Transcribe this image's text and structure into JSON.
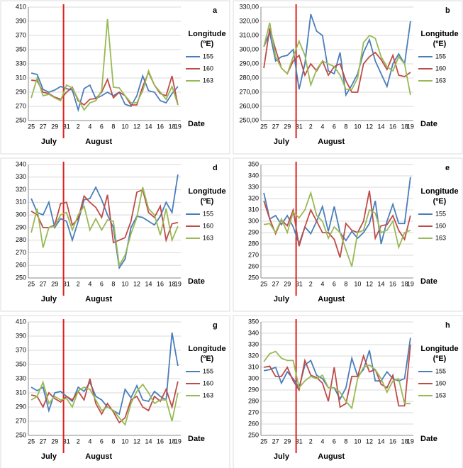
{
  "chart_data": [
    {
      "type": "line",
      "panel": "a",
      "categories": [
        "25",
        null,
        "27",
        null,
        "29",
        null,
        "31",
        null,
        "2",
        null,
        "4",
        null,
        "6",
        null,
        "8",
        null,
        "10",
        null,
        "12",
        null,
        "14",
        null,
        "16",
        null,
        "18",
        "19"
      ],
      "ylim": [
        250,
        410
      ],
      "yticks": [
        250,
        270,
        290,
        310,
        330,
        350,
        370,
        390,
        410
      ],
      "x_label": "Date",
      "month_labels": [
        "July",
        "August"
      ],
      "legend_title": [
        "Longitude",
        "(ºE)"
      ],
      "series": [
        {
          "name": "155",
          "color": "#4a7ebb",
          "values": [
            317,
            315,
            294,
            290,
            293,
            298,
            295,
            293,
            265,
            295,
            300,
            281,
            285,
            290,
            285,
            290,
            273,
            270,
            285,
            313,
            292,
            290,
            278,
            275,
            288,
            298
          ]
        },
        {
          "name": "160",
          "color": "#be4b48",
          "values": [
            307,
            306,
            290,
            288,
            283,
            280,
            290,
            297,
            278,
            272,
            280,
            281,
            290,
            308,
            282,
            290,
            285,
            272,
            272,
            298,
            318,
            300,
            288,
            285,
            313,
            272
          ]
        },
        {
          "name": "163",
          "color": "#98b954",
          "values": [
            282,
            310,
            285,
            287,
            282,
            278,
            300,
            296,
            280,
            265,
            275,
            278,
            292,
            393,
            297,
            296,
            285,
            275,
            275,
            292,
            320,
            300,
            290,
            280,
            298,
            272
          ]
        }
      ]
    },
    {
      "type": "line",
      "panel": "b",
      "categories": [
        "25",
        null,
        "27",
        null,
        "29",
        null,
        "31",
        null,
        "2",
        null,
        "4",
        null,
        "6",
        null,
        "8",
        null,
        "10",
        null,
        "12",
        null,
        "14",
        null,
        "16",
        null,
        "18",
        "19"
      ],
      "ylim": [
        250,
        330
      ],
      "yticks": [
        {
          "value": 250,
          "label": "250,00"
        },
        {
          "value": 260,
          "label": "260,00"
        },
        {
          "value": 270,
          "label": "270,00"
        },
        {
          "value": 280,
          "label": "280,00"
        },
        {
          "value": 290,
          "label": "290,00"
        },
        {
          "value": 300,
          "label": "300,00"
        },
        {
          "value": 310,
          "label": "310,00"
        },
        {
          "value": 320,
          "label": "320,00"
        },
        {
          "value": 330,
          "label": "330,00"
        }
      ],
      "x_label": "Date",
      "month_labels": [
        "July",
        "August"
      ],
      "legend_title": [
        "Longitude",
        "(ºE)"
      ],
      "series": [
        {
          "name": "155",
          "color": "#4a7ebb",
          "values": [
            302,
            312,
            292,
            295,
            296,
            300,
            272,
            290,
            325,
            313,
            310,
            285,
            283,
            298,
            268,
            275,
            283,
            298,
            307,
            292,
            283,
            274,
            290,
            297,
            290,
            320
          ]
        },
        {
          "name": "160",
          "color": "#be4b48",
          "values": [
            287,
            315,
            300,
            287,
            283,
            292,
            296,
            282,
            290,
            285,
            292,
            282,
            288,
            290,
            278,
            270,
            270,
            290,
            295,
            298,
            293,
            286,
            296,
            282,
            281,
            284
          ]
        },
        {
          "name": "163",
          "color": "#98b954",
          "values": [
            302,
            319,
            295,
            287,
            283,
            295,
            306,
            296,
            275,
            286,
            292,
            290,
            288,
            282,
            272,
            272,
            280,
            305,
            310,
            308,
            295,
            288,
            285,
            295,
            290,
            268
          ]
        }
      ]
    },
    {
      "type": "line",
      "panel": "d",
      "categories": [
        "25",
        null,
        "27",
        null,
        "29",
        null,
        "31",
        null,
        "2",
        null,
        "4",
        null,
        "6",
        null,
        "8",
        null,
        "10",
        null,
        "12",
        null,
        "14",
        null,
        "16",
        null,
        "18",
        "19"
      ],
      "ylim": [
        250,
        340
      ],
      "yticks": [
        250,
        260,
        270,
        280,
        290,
        300,
        310,
        320,
        330,
        340
      ],
      "x_label": "Date",
      "month_labels": [
        "July",
        "August"
      ],
      "legend_title": [
        "Longitude",
        "(ºE)"
      ],
      "series": [
        {
          "name": "155",
          "color": "#4a7ebb",
          "values": [
            313,
            302,
            300,
            310,
            290,
            297,
            295,
            280,
            295,
            312,
            313,
            322,
            312,
            300,
            290,
            258,
            265,
            290,
            299,
            298,
            295,
            292,
            299,
            310,
            302,
            332
          ]
        },
        {
          "name": "160",
          "color": "#be4b48",
          "values": [
            303,
            300,
            290,
            290,
            292,
            309,
            310,
            292,
            297,
            315,
            310,
            306,
            298,
            316,
            278,
            280,
            282,
            295,
            318,
            320,
            302,
            298,
            307,
            280,
            293,
            294
          ]
        },
        {
          "name": "163",
          "color": "#98b954",
          "values": [
            286,
            305,
            274,
            290,
            291,
            300,
            302,
            288,
            300,
            307,
            288,
            297,
            288,
            296,
            295,
            260,
            268,
            285,
            298,
            322,
            305,
            300,
            284,
            305,
            280,
            291
          ]
        }
      ]
    },
    {
      "type": "line",
      "panel": "e",
      "categories": [
        "25",
        null,
        "27",
        null,
        "29",
        null,
        "31",
        null,
        "2",
        null,
        "4",
        null,
        "6",
        null,
        "8",
        null,
        "10",
        null,
        "12",
        null,
        "14",
        null,
        "16",
        null,
        "18",
        "19"
      ],
      "ylim": [
        250,
        350
      ],
      "yticks": [
        250,
        260,
        270,
        280,
        290,
        300,
        310,
        320,
        330,
        340,
        350
      ],
      "x_label": "Date",
      "month_labels": [
        "July",
        "August"
      ],
      "legend_title": [
        "Longitude",
        "(ºE)"
      ],
      "series": [
        {
          "name": "155",
          "color": "#4a7ebb",
          "values": [
            325,
            302,
            305,
            297,
            305,
            295,
            280,
            295,
            289,
            300,
            313,
            291,
            313,
            290,
            283,
            291,
            285,
            290,
            298,
            318,
            280,
            300,
            315,
            298,
            298,
            339
          ]
        },
        {
          "name": "160",
          "color": "#be4b48",
          "values": [
            318,
            302,
            289,
            301,
            296,
            310,
            278,
            295,
            310,
            300,
            290,
            290,
            284,
            268,
            298,
            292,
            290,
            300,
            327,
            285,
            296,
            297,
            305,
            292,
            284,
            305
          ]
        },
        {
          "name": "163",
          "color": "#98b954",
          "values": [
            297,
            298,
            290,
            302,
            290,
            308,
            303,
            310,
            325,
            305,
            300,
            285,
            295,
            290,
            275,
            260,
            290,
            292,
            310,
            307,
            290,
            292,
            300,
            277,
            290,
            292
          ]
        }
      ]
    },
    {
      "type": "line",
      "panel": "g",
      "categories": [
        "25",
        null,
        "27",
        null,
        "29",
        null,
        "31",
        null,
        "2",
        null,
        "4",
        null,
        "6",
        null,
        "8",
        null,
        "10",
        null,
        "12",
        null,
        "14",
        null,
        "16",
        null,
        "18",
        "19"
      ],
      "ylim": [
        250,
        410
      ],
      "yticks": [
        250,
        270,
        290,
        310,
        330,
        350,
        370,
        390,
        410
      ],
      "x_label": "Date",
      "month_labels": [
        "July",
        "August"
      ],
      "legend_title": [
        "Longitude",
        "(ºE)"
      ],
      "series": [
        {
          "name": "155",
          "color": "#4a7ebb",
          "values": [
            318,
            313,
            318,
            285,
            310,
            312,
            305,
            298,
            318,
            312,
            325,
            305,
            300,
            290,
            285,
            280,
            315,
            303,
            320,
            300,
            298,
            312,
            305,
            300,
            395,
            348
          ]
        },
        {
          "name": "160",
          "color": "#be4b48",
          "values": [
            307,
            305,
            290,
            310,
            302,
            297,
            305,
            300,
            312,
            300,
            330,
            295,
            280,
            295,
            283,
            268,
            275,
            300,
            305,
            290,
            285,
            305,
            298,
            315,
            290,
            326
          ]
        },
        {
          "name": "163",
          "color": "#98b954",
          "values": [
            300,
            305,
            325,
            295,
            305,
            300,
            302,
            290,
            313,
            318,
            315,
            300,
            285,
            290,
            285,
            275,
            265,
            295,
            312,
            322,
            310,
            295,
            300,
            300,
            270,
            310
          ]
        }
      ]
    },
    {
      "type": "line",
      "panel": "h",
      "categories": [
        "25",
        null,
        "27",
        null,
        "29",
        null,
        "31",
        null,
        "2",
        null,
        "4",
        null,
        "6",
        null,
        "8",
        null,
        "10",
        null,
        "12",
        null,
        "14",
        null,
        "16",
        null,
        "18",
        "19"
      ],
      "ylim": [
        250,
        350
      ],
      "yticks": [
        250,
        260,
        270,
        280,
        290,
        300,
        310,
        320,
        330,
        340,
        350
      ],
      "x_label": "Date",
      "month_labels": [
        "July",
        "August"
      ],
      "legend_title": [
        "Longitude",
        "(ºE)"
      ],
      "series": [
        {
          "name": "155",
          "color": "#4a7ebb",
          "values": [
            307,
            308,
            310,
            296,
            306,
            300,
            292,
            312,
            316,
            303,
            300,
            292,
            292,
            282,
            292,
            318,
            302,
            308,
            325,
            298,
            298,
            306,
            300,
            298,
            300,
            336
          ]
        },
        {
          "name": "160",
          "color": "#be4b48",
          "values": [
            310,
            311,
            302,
            302,
            310,
            298,
            290,
            316,
            303,
            301,
            296,
            280,
            310,
            275,
            278,
            302,
            302,
            320,
            306,
            308,
            295,
            292,
            303,
            276,
            276,
            330
          ]
        },
        {
          "name": "163",
          "color": "#98b954",
          "values": [
            315,
            322,
            324,
            318,
            316,
            316,
            292,
            298,
            302,
            300,
            303,
            292,
            292,
            288,
            280,
            274,
            300,
            310,
            312,
            308,
            300,
            288,
            298,
            300,
            278,
            278
          ]
        }
      ]
    }
  ]
}
